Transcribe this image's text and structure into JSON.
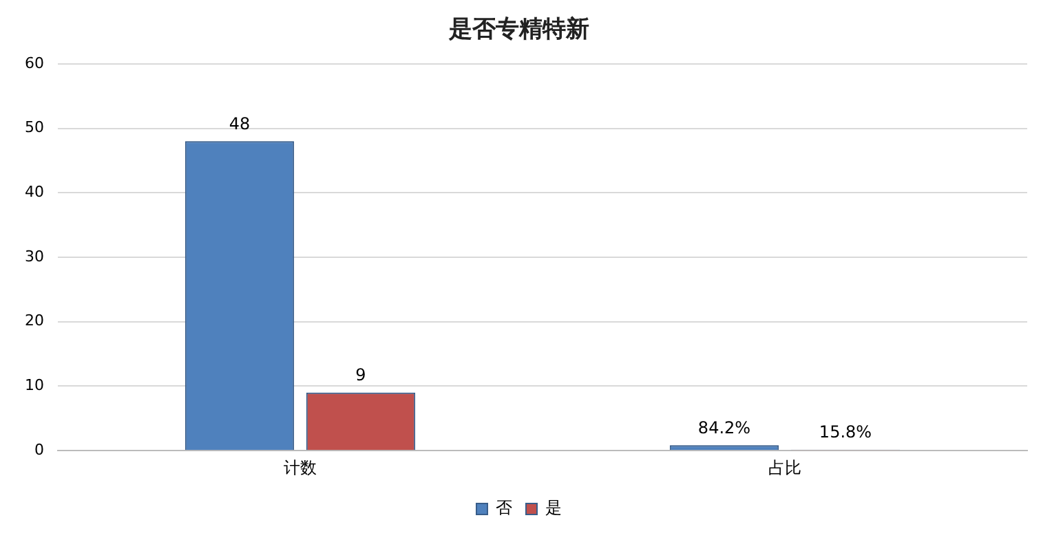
{
  "chart_data": {
    "type": "bar",
    "title": "是否专精特新",
    "categories": [
      "计数",
      "占比"
    ],
    "series": [
      {
        "name": "否",
        "color": "#4f81bd",
        "values": [
          48,
          0.842
        ],
        "value_labels": [
          "48",
          "84.2%"
        ]
      },
      {
        "name": "是",
        "color": "#c0504d",
        "values": [
          9,
          0.158
        ],
        "value_labels": [
          "9",
          "15.8%"
        ]
      }
    ],
    "ylim": [
      0,
      60
    ],
    "yticks": [
      0,
      10,
      20,
      30,
      40,
      50,
      60
    ],
    "grid": "y",
    "legend": "bottom"
  }
}
